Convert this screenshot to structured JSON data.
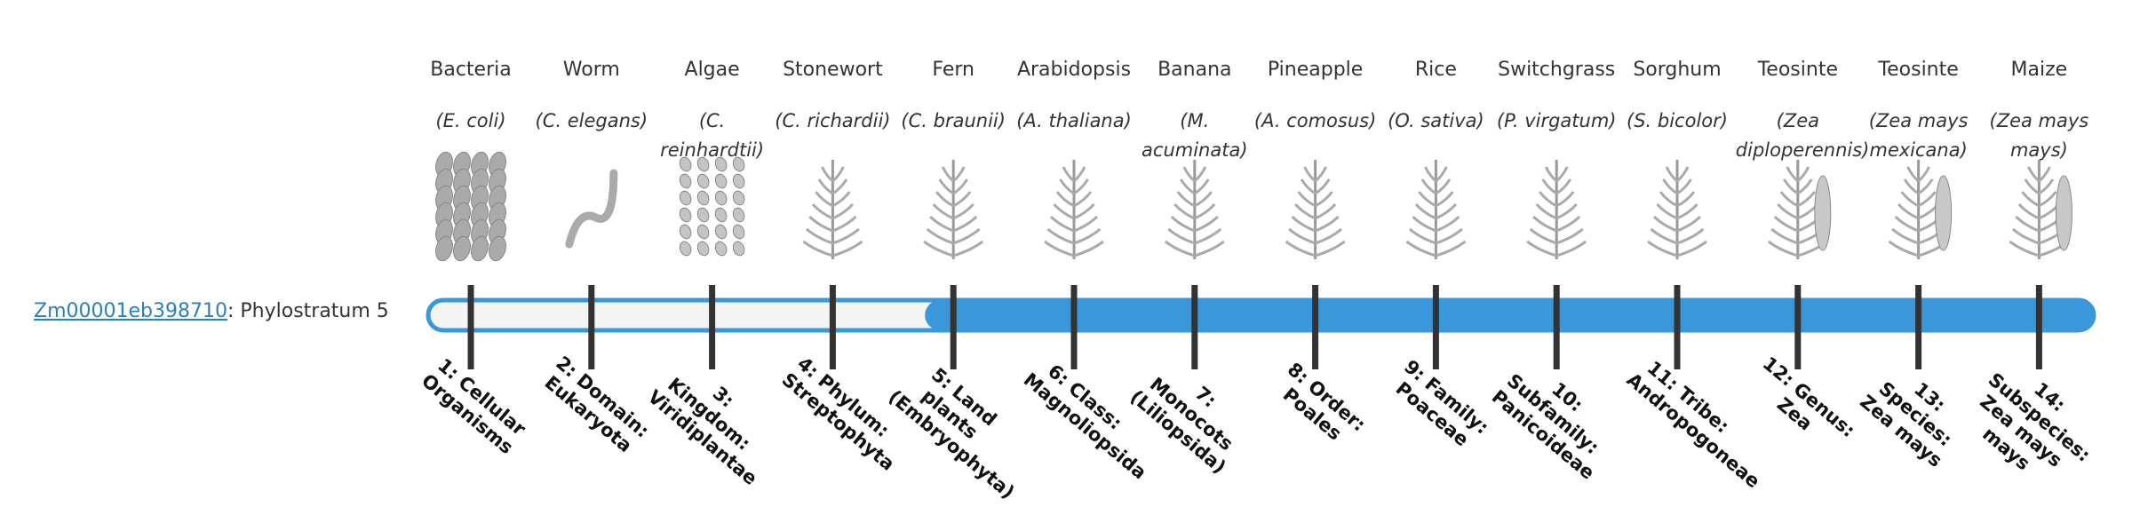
{
  "gene": {
    "id": "Zm00001eb398710",
    "text": ": Phylostratum 5"
  },
  "organisms": [
    {
      "name": "Bacteria",
      "species": "(E. coli)",
      "stratum": "1: Cellular Organisms"
    },
    {
      "name": "Worm",
      "species": "(C. elegans)",
      "stratum": "2: Domain: Eukaryota"
    },
    {
      "name": "Algae",
      "species": "(C. reinhardtii)",
      "stratum": "3: Kingdom: Viridiplantae"
    },
    {
      "name": "Stonewort",
      "species": "(C. richardii)",
      "stratum": "4: Phylum: Streptophyta"
    },
    {
      "name": "Fern",
      "species": "(C. braunii)",
      "stratum": "5: Land plants (Embryophyta)"
    },
    {
      "name": "Arabidopsis",
      "species": "(A. thaliana)",
      "stratum": "6: Class: Magnoliopsida"
    },
    {
      "name": "Banana",
      "species": "(M. acuminata)",
      "stratum": "7: Monocots (Liliopsida)"
    },
    {
      "name": "Pineapple",
      "species": "(A. comosus)",
      "stratum": "8: Order: Poales"
    },
    {
      "name": "Rice",
      "species": "(O. sativa)",
      "stratum": "9: Family: Poaceae"
    },
    {
      "name": "Switchgrass",
      "species": "(P. virgatum)",
      "stratum": "10: Subfamily: Panicoideae"
    },
    {
      "name": "Sorghum",
      "species": "(S. bicolor)",
      "stratum": "11: Tribe: Andropogoneae"
    },
    {
      "name": "Teosinte",
      "species": "(Zea diploperennis)",
      "stratum": "12: Genus: Zea"
    },
    {
      "name": "Teosinte",
      "species": "(Zea mays mexicana)",
      "stratum": "13: Species: Zea mays"
    },
    {
      "name": "Maize",
      "species": "(Zea mays mays)",
      "stratum": "14: Subspecies: Zea mays mays"
    }
  ]
}
